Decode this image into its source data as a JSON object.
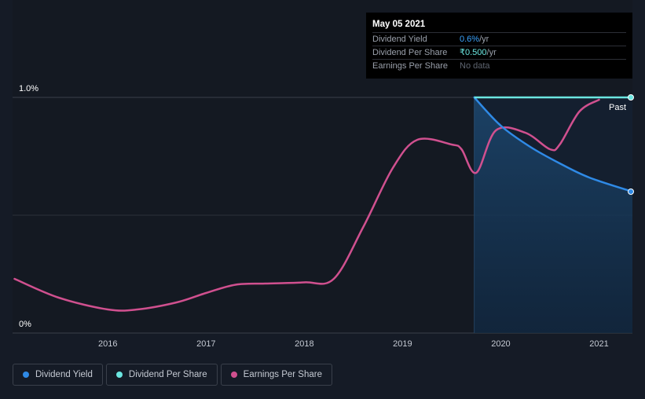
{
  "chart_data": {
    "type": "line",
    "title": "",
    "xlabel": "",
    "ylabel": "",
    "x_ticks": [
      "2016",
      "2017",
      "2018",
      "2019",
      "2020",
      "2021"
    ],
    "y_ticks": [
      "1.0%",
      "0%"
    ],
    "ylim": [
      0,
      1.0
    ],
    "xlim": [
      2015.03,
      2021.34
    ],
    "past_label": "Past",
    "series": [
      {
        "name": "Dividend Yield",
        "color": "#2f8ae6",
        "unit": "%",
        "points": [
          [
            2019.73,
            1.0
          ],
          [
            2020.0,
            0.88
          ],
          [
            2020.3,
            0.79
          ],
          [
            2020.6,
            0.72
          ],
          [
            2020.9,
            0.66
          ],
          [
            2021.34,
            0.6
          ]
        ]
      },
      {
        "name": "Dividend Per Share",
        "color": "#6be6e0",
        "points": [
          [
            2019.73,
            1.0
          ],
          [
            2021.34,
            1.0
          ]
        ]
      },
      {
        "name": "Earnings Per Share",
        "color": "#d0508f",
        "points": [
          [
            2015.05,
            0.23
          ],
          [
            2015.5,
            0.15
          ],
          [
            2016.0,
            0.1
          ],
          [
            2016.3,
            0.1
          ],
          [
            2016.7,
            0.13
          ],
          [
            2017.0,
            0.17
          ],
          [
            2017.3,
            0.205
          ],
          [
            2017.6,
            0.21
          ],
          [
            2018.0,
            0.215
          ],
          [
            2018.3,
            0.23
          ],
          [
            2018.6,
            0.45
          ],
          [
            2018.9,
            0.7
          ],
          [
            2019.15,
            0.82
          ],
          [
            2019.5,
            0.8
          ],
          [
            2019.6,
            0.78
          ],
          [
            2019.75,
            0.68
          ],
          [
            2019.95,
            0.86
          ],
          [
            2020.25,
            0.85
          ],
          [
            2020.5,
            0.78
          ],
          [
            2020.6,
            0.8
          ],
          [
            2020.8,
            0.94
          ],
          [
            2021.0,
            0.99
          ]
        ]
      }
    ],
    "shaded_region": [
      2019.73,
      2021.34
    ],
    "tooltip": {
      "date": "May 05 2021",
      "rows": [
        {
          "label": "Dividend Yield",
          "value": "0.6%",
          "unit": " /yr"
        },
        {
          "label": "Dividend Per Share",
          "value": "₹0.500",
          "unit": " /yr"
        },
        {
          "label": "Earnings Per Share",
          "value": "No data",
          "unit": ""
        }
      ]
    },
    "legend": [
      {
        "name": "Dividend Yield",
        "color": "#2f8ae6"
      },
      {
        "name": "Dividend Per Share",
        "color": "#6be6e0"
      },
      {
        "name": "Earnings Per Share",
        "color": "#d0508f"
      }
    ]
  }
}
